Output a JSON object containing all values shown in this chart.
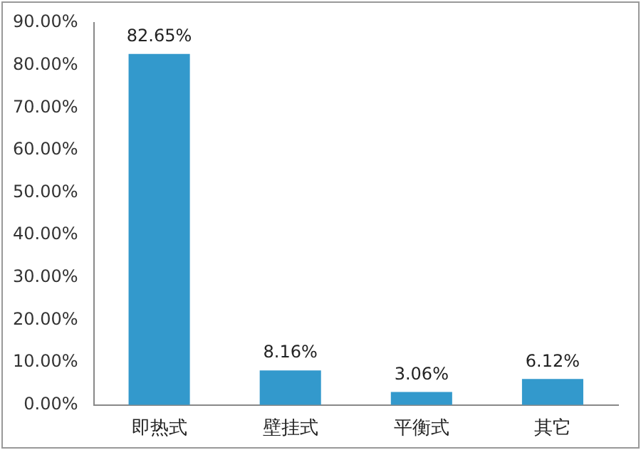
{
  "chart_data": {
    "type": "bar",
    "categories": [
      "即热式",
      "壁挂式",
      "平衡式",
      "其它"
    ],
    "values": [
      82.65,
      8.16,
      3.06,
      6.12
    ],
    "color": "#3399cc",
    "value_labels": [
      "82.65%",
      "8.16%",
      "3.06%",
      "6.12%"
    ],
    "ylim": [
      0,
      90
    ],
    "yticks": [
      {
        "value": 0,
        "label": "0.00%"
      },
      {
        "value": 10,
        "label": "10.00%"
      },
      {
        "value": 20,
        "label": "20.00%"
      },
      {
        "value": 30,
        "label": "30.00%"
      },
      {
        "value": 40,
        "label": "40.00%"
      },
      {
        "value": 50,
        "label": "50.00%"
      },
      {
        "value": 60,
        "label": "60.00%"
      },
      {
        "value": 70,
        "label": "70.00%"
      },
      {
        "value": 80,
        "label": "80.00%"
      },
      {
        "value": 90,
        "label": "90.00%"
      }
    ],
    "grid": false,
    "legend": false
  }
}
